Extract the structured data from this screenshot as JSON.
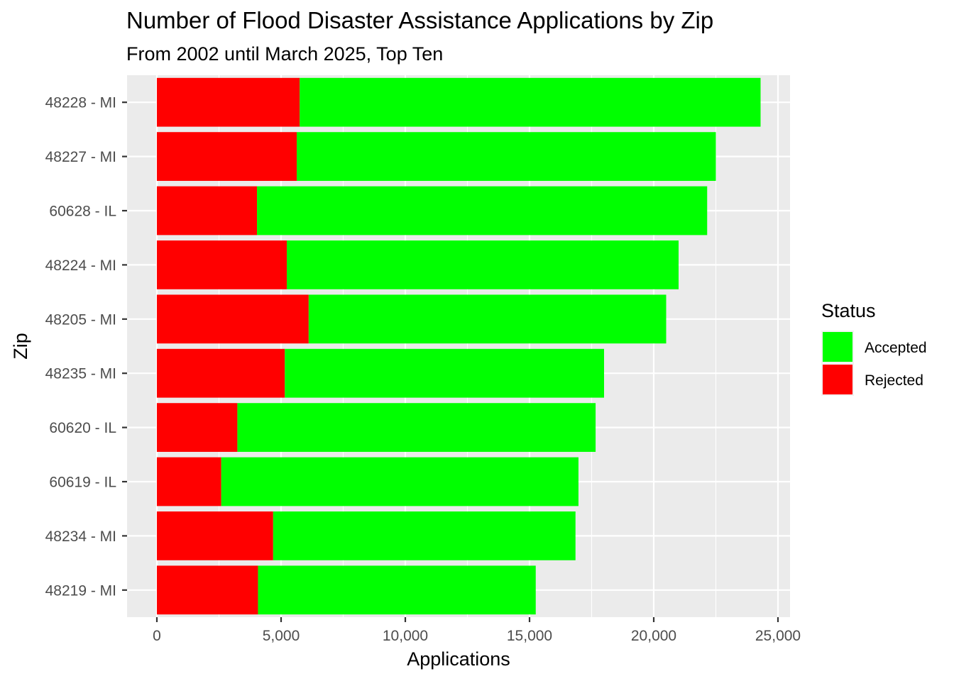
{
  "chart_data": {
    "type": "bar",
    "orientation": "horizontal",
    "stacked": true,
    "title": "Number of Flood Disaster Assistance Applications by Zip",
    "subtitle": "From 2002 until March 2025, Top Ten",
    "xlabel": "Applications",
    "ylabel": "Zip",
    "xlim": [
      -1200,
      25500
    ],
    "x_ticks": [
      0,
      5000,
      10000,
      15000,
      20000,
      25000
    ],
    "x_tick_labels": [
      "0",
      "5,000",
      "10,000",
      "15,000",
      "20,000",
      "25,000"
    ],
    "grid": true,
    "legend_position": "right",
    "legend": {
      "title": "Status",
      "entries": [
        "Accepted",
        "Rejected"
      ]
    },
    "categories": [
      "48228 - MI",
      "48227 - MI",
      "60628 - IL",
      "48224 - MI",
      "48205 - MI",
      "48235 - MI",
      "60620 - IL",
      "60619 - IL",
      "48234 - MI",
      "48219 - MI"
    ],
    "series": [
      {
        "name": "Rejected",
        "color": "#ff0000",
        "values": [
          5750,
          5630,
          4030,
          5230,
          6110,
          5150,
          3240,
          2590,
          4680,
          4070
        ]
      },
      {
        "name": "Accepted",
        "color": "#00ff00",
        "values": [
          18550,
          16870,
          18120,
          15770,
          14390,
          12850,
          14420,
          14380,
          12170,
          11180
        ]
      }
    ],
    "totals": [
      24300,
      22500,
      22150,
      21000,
      20500,
      18000,
      17660,
      16970,
      16850,
      15250
    ]
  }
}
